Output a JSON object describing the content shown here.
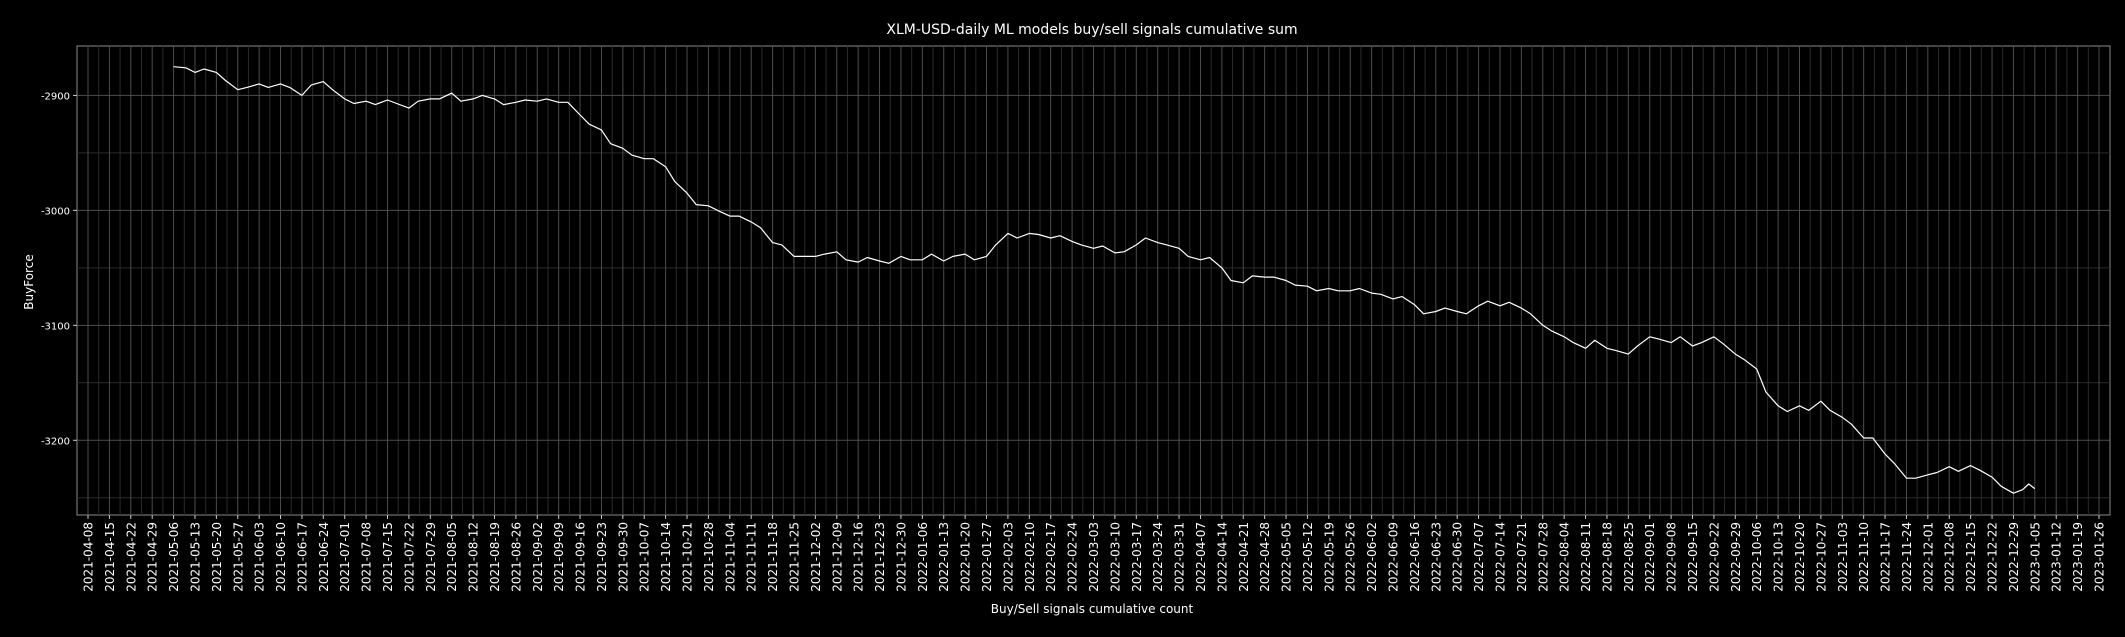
{
  "chart_data": {
    "type": "line",
    "title": "XLM-USD-daily ML models buy/sell signals cumulative sum",
    "xlabel": "Buy/Sell signals cumulative count",
    "ylabel": "BuyForce",
    "y_ticks": [
      -3200,
      -3100,
      -3000,
      -2900
    ],
    "y_tick_labels": [
      "-3200",
      "-3100",
      "-3000",
      "-2900"
    ],
    "ylim": [
      -3265,
      -2857
    ],
    "x_start_date": "2021-04-08",
    "x_end_date": "2023-01-26",
    "x_tick_labels": [
      "2021-04-08",
      "2021-04-15",
      "2021-04-22",
      "2021-04-29",
      "2021-05-06",
      "2021-05-13",
      "2021-05-20",
      "2021-05-27",
      "2021-06-03",
      "2021-06-10",
      "2021-06-17",
      "2021-06-24",
      "2021-07-01",
      "2021-07-08",
      "2021-07-15",
      "2021-07-22",
      "2021-07-29",
      "2021-08-05",
      "2021-08-12",
      "2021-08-19",
      "2021-08-26",
      "2021-09-02",
      "2021-09-09",
      "2021-09-16",
      "2021-09-23",
      "2021-09-30",
      "2021-10-07",
      "2021-10-14",
      "2021-10-21",
      "2021-10-28",
      "2021-11-04",
      "2021-11-11",
      "2021-11-18",
      "2021-11-25",
      "2021-12-02",
      "2021-12-09",
      "2021-12-16",
      "2021-12-23",
      "2021-12-30",
      "2022-01-06",
      "2022-01-13",
      "2022-01-20",
      "2022-01-27",
      "2022-02-03",
      "2022-02-10",
      "2022-02-17",
      "2022-02-24",
      "2022-03-03",
      "2022-03-10",
      "2022-03-17",
      "2022-03-24",
      "2022-03-31",
      "2022-04-07",
      "2022-04-14",
      "2022-04-21",
      "2022-04-28",
      "2022-05-05",
      "2022-05-12",
      "2022-05-19",
      "2022-05-26",
      "2022-06-02",
      "2022-06-09",
      "2022-06-16",
      "2022-06-23",
      "2022-06-30",
      "2022-07-07",
      "2022-07-14",
      "2022-07-21",
      "2022-07-28",
      "2022-08-04",
      "2022-08-11",
      "2022-08-18",
      "2022-08-25",
      "2022-09-01",
      "2022-09-08",
      "2022-09-15",
      "2022-09-22",
      "2022-09-29",
      "2022-10-06",
      "2022-10-13",
      "2022-10-20",
      "2022-10-27",
      "2022-11-03",
      "2022-11-10",
      "2022-11-17",
      "2022-11-24",
      "2022-12-01",
      "2022-12-08",
      "2022-12-15",
      "2022-12-22",
      "2022-12-29",
      "2023-01-05",
      "2023-01-12",
      "2023-01-19",
      "2023-01-26"
    ],
    "grid": true,
    "series": [
      {
        "color": "#ffffff",
        "points": [
          [
            "2021-05-06",
            -2875
          ],
          [
            "2021-05-10",
            -2876
          ],
          [
            "2021-05-13",
            -2880
          ],
          [
            "2021-05-16",
            -2877
          ],
          [
            "2021-05-20",
            -2880
          ],
          [
            "2021-05-23",
            -2887
          ],
          [
            "2021-05-27",
            -2895
          ],
          [
            "2021-05-30",
            -2893
          ],
          [
            "2021-06-03",
            -2890
          ],
          [
            "2021-06-06",
            -2893
          ],
          [
            "2021-06-10",
            -2890
          ],
          [
            "2021-06-13",
            -2893
          ],
          [
            "2021-06-17",
            -2900
          ],
          [
            "2021-06-20",
            -2891
          ],
          [
            "2021-06-24",
            -2888
          ],
          [
            "2021-06-27",
            -2895
          ],
          [
            "2021-07-01",
            -2903
          ],
          [
            "2021-07-04",
            -2907
          ],
          [
            "2021-07-08",
            -2905
          ],
          [
            "2021-07-11",
            -2908
          ],
          [
            "2021-07-15",
            -2904
          ],
          [
            "2021-07-18",
            -2907
          ],
          [
            "2021-07-22",
            -2911
          ],
          [
            "2021-07-25",
            -2905
          ],
          [
            "2021-07-29",
            -2903
          ],
          [
            "2021-08-01",
            -2903
          ],
          [
            "2021-08-05",
            -2898
          ],
          [
            "2021-08-08",
            -2905
          ],
          [
            "2021-08-12",
            -2903
          ],
          [
            "2021-08-15",
            -2900
          ],
          [
            "2021-08-19",
            -2903
          ],
          [
            "2021-08-22",
            -2908
          ],
          [
            "2021-08-26",
            -2906
          ],
          [
            "2021-08-29",
            -2904
          ],
          [
            "2021-09-02",
            -2905
          ],
          [
            "2021-09-05",
            -2903
          ],
          [
            "2021-09-09",
            -2906
          ],
          [
            "2021-09-12",
            -2906
          ],
          [
            "2021-09-16",
            -2917
          ],
          [
            "2021-09-19",
            -2925
          ],
          [
            "2021-09-23",
            -2930
          ],
          [
            "2021-09-26",
            -2942
          ],
          [
            "2021-09-30",
            -2946
          ],
          [
            "2021-10-03",
            -2952
          ],
          [
            "2021-10-07",
            -2955
          ],
          [
            "2021-10-10",
            -2955
          ],
          [
            "2021-10-14",
            -2962
          ],
          [
            "2021-10-17",
            -2975
          ],
          [
            "2021-10-21",
            -2985
          ],
          [
            "2021-10-24",
            -2995
          ],
          [
            "2021-10-28",
            -2996
          ],
          [
            "2021-10-31",
            -3000
          ],
          [
            "2021-11-04",
            -3005
          ],
          [
            "2021-11-07",
            -3005
          ],
          [
            "2021-11-11",
            -3010
          ],
          [
            "2021-11-14",
            -3015
          ],
          [
            "2021-11-18",
            -3028
          ],
          [
            "2021-11-21",
            -3030
          ],
          [
            "2021-11-25",
            -3040
          ],
          [
            "2021-11-28",
            -3040
          ],
          [
            "2021-12-02",
            -3040
          ],
          [
            "2021-12-05",
            -3038
          ],
          [
            "2021-12-09",
            -3036
          ],
          [
            "2021-12-12",
            -3043
          ],
          [
            "2021-12-16",
            -3045
          ],
          [
            "2021-12-19",
            -3041
          ],
          [
            "2021-12-23",
            -3044
          ],
          [
            "2021-12-26",
            -3046
          ],
          [
            "2021-12-30",
            -3040
          ],
          [
            "2022-01-02",
            -3043
          ],
          [
            "2022-01-06",
            -3043
          ],
          [
            "2022-01-09",
            -3038
          ],
          [
            "2022-01-13",
            -3044
          ],
          [
            "2022-01-16",
            -3040
          ],
          [
            "2022-01-20",
            -3038
          ],
          [
            "2022-01-23",
            -3043
          ],
          [
            "2022-01-27",
            -3040
          ],
          [
            "2022-01-30",
            -3030
          ],
          [
            "2022-02-03",
            -3020
          ],
          [
            "2022-02-06",
            -3024
          ],
          [
            "2022-02-10",
            -3020
          ],
          [
            "2022-02-13",
            -3021
          ],
          [
            "2022-02-17",
            -3024
          ],
          [
            "2022-02-20",
            -3022
          ],
          [
            "2022-02-24",
            -3027
          ],
          [
            "2022-02-27",
            -3030
          ],
          [
            "2022-03-03",
            -3033
          ],
          [
            "2022-03-06",
            -3031
          ],
          [
            "2022-03-10",
            -3037
          ],
          [
            "2022-03-13",
            -3036
          ],
          [
            "2022-03-17",
            -3030
          ],
          [
            "2022-03-20",
            -3024
          ],
          [
            "2022-03-24",
            -3028
          ],
          [
            "2022-03-27",
            -3030
          ],
          [
            "2022-03-31",
            -3033
          ],
          [
            "2022-04-03",
            -3040
          ],
          [
            "2022-04-07",
            -3043
          ],
          [
            "2022-04-10",
            -3041
          ],
          [
            "2022-04-14",
            -3050
          ],
          [
            "2022-04-17",
            -3061
          ],
          [
            "2022-04-21",
            -3063
          ],
          [
            "2022-04-24",
            -3057
          ],
          [
            "2022-04-28",
            -3058
          ],
          [
            "2022-05-01",
            -3058
          ],
          [
            "2022-05-05",
            -3061
          ],
          [
            "2022-05-08",
            -3065
          ],
          [
            "2022-05-12",
            -3066
          ],
          [
            "2022-05-15",
            -3070
          ],
          [
            "2022-05-19",
            -3068
          ],
          [
            "2022-05-22",
            -3070
          ],
          [
            "2022-05-26",
            -3070
          ],
          [
            "2022-05-29",
            -3068
          ],
          [
            "2022-06-02",
            -3072
          ],
          [
            "2022-06-05",
            -3073
          ],
          [
            "2022-06-09",
            -3077
          ],
          [
            "2022-06-12",
            -3075
          ],
          [
            "2022-06-16",
            -3082
          ],
          [
            "2022-06-19",
            -3090
          ],
          [
            "2022-06-23",
            -3088
          ],
          [
            "2022-06-26",
            -3085
          ],
          [
            "2022-06-30",
            -3088
          ],
          [
            "2022-07-03",
            -3090
          ],
          [
            "2022-07-07",
            -3083
          ],
          [
            "2022-07-10",
            -3079
          ],
          [
            "2022-07-14",
            -3083
          ],
          [
            "2022-07-17",
            -3080
          ],
          [
            "2022-07-21",
            -3085
          ],
          [
            "2022-07-24",
            -3090
          ],
          [
            "2022-07-28",
            -3100
          ],
          [
            "2022-07-31",
            -3105
          ],
          [
            "2022-08-04",
            -3110
          ],
          [
            "2022-08-07",
            -3115
          ],
          [
            "2022-08-11",
            -3120
          ],
          [
            "2022-08-14",
            -3113
          ],
          [
            "2022-08-18",
            -3120
          ],
          [
            "2022-08-21",
            -3122
          ],
          [
            "2022-08-25",
            -3125
          ],
          [
            "2022-08-28",
            -3118
          ],
          [
            "2022-09-01",
            -3110
          ],
          [
            "2022-09-04",
            -3112
          ],
          [
            "2022-09-08",
            -3115
          ],
          [
            "2022-09-11",
            -3110
          ],
          [
            "2022-09-15",
            -3118
          ],
          [
            "2022-09-18",
            -3115
          ],
          [
            "2022-09-22",
            -3110
          ],
          [
            "2022-09-25",
            -3116
          ],
          [
            "2022-09-29",
            -3125
          ],
          [
            "2022-10-02",
            -3130
          ],
          [
            "2022-10-06",
            -3138
          ],
          [
            "2022-10-09",
            -3158
          ],
          [
            "2022-10-13",
            -3170
          ],
          [
            "2022-10-16",
            -3175
          ],
          [
            "2022-10-20",
            -3170
          ],
          [
            "2022-10-23",
            -3174
          ],
          [
            "2022-10-27",
            -3166
          ],
          [
            "2022-10-30",
            -3174
          ],
          [
            "2022-11-03",
            -3180
          ],
          [
            "2022-11-06",
            -3186
          ],
          [
            "2022-11-10",
            -3198
          ],
          [
            "2022-11-13",
            -3198
          ],
          [
            "2022-11-17",
            -3212
          ],
          [
            "2022-11-20",
            -3220
          ],
          [
            "2022-11-24",
            -3233
          ],
          [
            "2022-11-27",
            -3233
          ],
          [
            "2022-12-01",
            -3230
          ],
          [
            "2022-12-04",
            -3228
          ],
          [
            "2022-12-08",
            -3223
          ],
          [
            "2022-12-11",
            -3227
          ],
          [
            "2022-12-15",
            -3222
          ],
          [
            "2022-12-18",
            -3226
          ],
          [
            "2022-12-22",
            -3232
          ],
          [
            "2022-12-25",
            -3240
          ],
          [
            "2022-12-29",
            -3246
          ],
          [
            "2023-01-01",
            -3243
          ],
          [
            "2023-01-03",
            -3238
          ],
          [
            "2023-01-05",
            -3242
          ]
        ]
      }
    ]
  },
  "colors": {
    "background": "#000000",
    "panel": "#000000",
    "grid_major": "#4d4d4d",
    "grid_minor": "#2b2b2b",
    "line": "#ffffff",
    "text": "#ffffff"
  }
}
